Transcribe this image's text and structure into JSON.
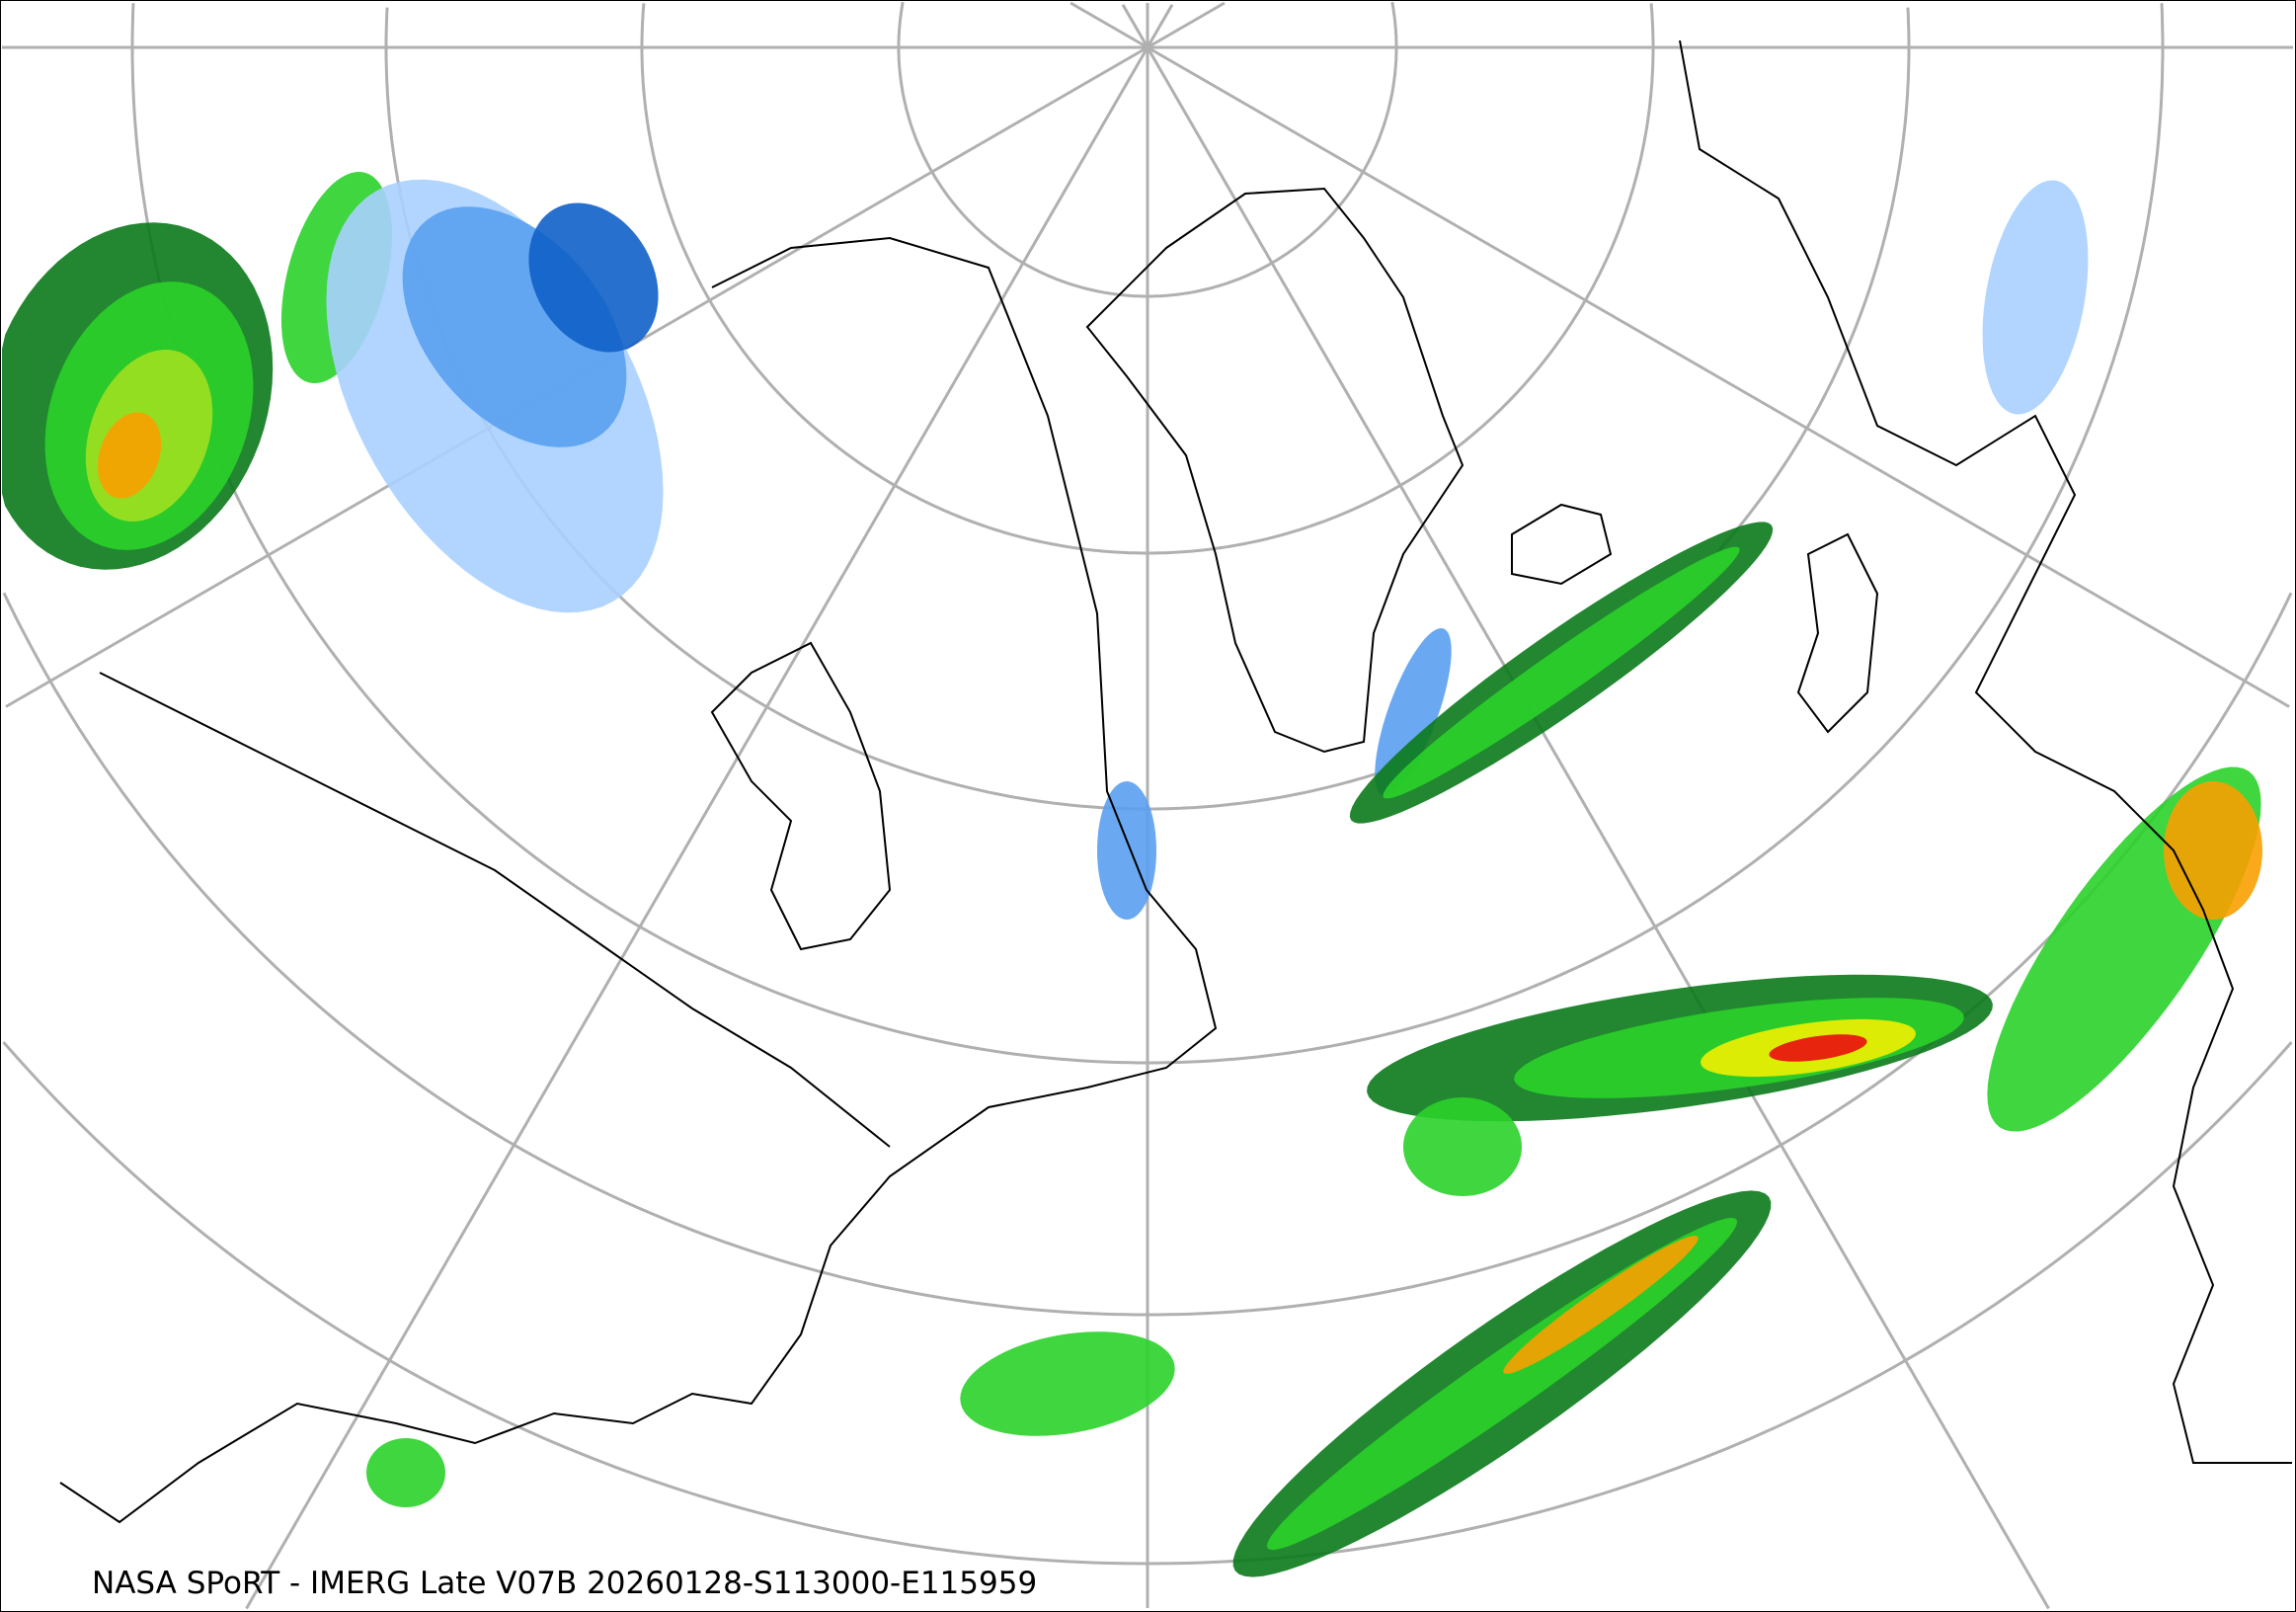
{
  "caption": "NASA SPoRT - IMERG Late V07B 20260128-S113000-E115959",
  "colors": {
    "graticule": "#b0b0b0",
    "coast": "#000000",
    "snow_light": "#a8d0ff",
    "snow_mid": "#5aa0f0",
    "snow_heavy": "#1060c8",
    "rain_dark": "#0a7a1a",
    "rain_light": "#2ad22a",
    "rain_mid": "#a0e020",
    "rain_yellow": "#f0f000",
    "rain_orange": "#f8a000",
    "rain_red": "#e81010",
    "mixed": "#f060c0"
  }
}
